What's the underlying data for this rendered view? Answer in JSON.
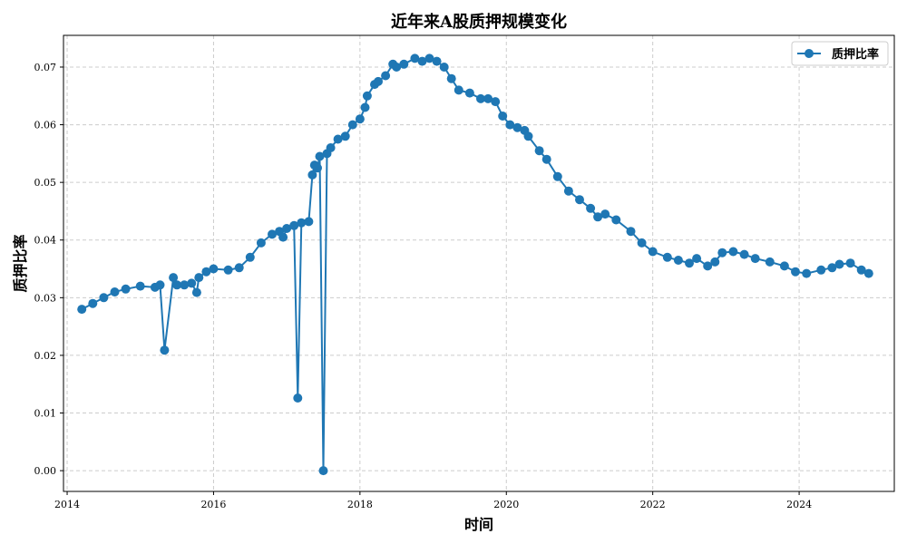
{
  "chart_data": {
    "type": "line",
    "title": "近年来A股质押规模变化",
    "xlabel": "时间",
    "ylabel": "质押比率",
    "xlim": [
      2013.95,
      2025.3
    ],
    "ylim": [
      -0.0036,
      0.0755
    ],
    "x_ticks": [
      2014,
      2016,
      2018,
      2020,
      2022,
      2024
    ],
    "x_tick_labels": [
      "2014",
      "2016",
      "2018",
      "2020",
      "2022",
      "2024"
    ],
    "y_ticks": [
      0.0,
      0.01,
      0.02,
      0.03,
      0.04,
      0.05,
      0.06,
      0.07
    ],
    "y_tick_labels": [
      "0.00",
      "0.01",
      "0.02",
      "0.03",
      "0.04",
      "0.05",
      "0.06",
      "0.07"
    ],
    "grid": true,
    "legend_position": "top-right",
    "colors": {
      "series": "#1f77b4",
      "grid": "#cccccc",
      "axis": "#000000"
    },
    "series": [
      {
        "name": "质押比率",
        "x": [
          2014.2,
          2014.35,
          2014.5,
          2014.65,
          2014.8,
          2015.0,
          2015.2,
          2015.27,
          2015.33,
          2015.45,
          2015.5,
          2015.6,
          2015.7,
          2015.77,
          2015.8,
          2015.9,
          2016.0,
          2016.2,
          2016.35,
          2016.5,
          2016.65,
          2016.8,
          2016.9,
          2016.95,
          2017.0,
          2017.1,
          2017.15,
          2017.2,
          2017.3,
          2017.35,
          2017.38,
          2017.42,
          2017.45,
          2017.5,
          2017.55,
          2017.6,
          2017.7,
          2017.8,
          2017.9,
          2018.0,
          2018.07,
          2018.1,
          2018.2,
          2018.25,
          2018.35,
          2018.45,
          2018.5,
          2018.6,
          2018.75,
          2018.85,
          2018.95,
          2019.05,
          2019.15,
          2019.25,
          2019.35,
          2019.5,
          2019.65,
          2019.75,
          2019.85,
          2019.95,
          2020.05,
          2020.15,
          2020.25,
          2020.3,
          2020.45,
          2020.55,
          2020.7,
          2020.85,
          2021.0,
          2021.15,
          2021.25,
          2021.35,
          2021.5,
          2021.7,
          2021.85,
          2022.0,
          2022.2,
          2022.35,
          2022.5,
          2022.6,
          2022.75,
          2022.85,
          2022.95,
          2023.1,
          2023.25,
          2023.4,
          2023.6,
          2023.8,
          2023.95,
          2024.1,
          2024.3,
          2024.45,
          2024.55,
          2024.7,
          2024.85,
          2024.95
        ],
        "values": [
          0.028,
          0.029,
          0.03,
          0.031,
          0.0315,
          0.032,
          0.0318,
          0.0322,
          0.0209,
          0.0335,
          0.0322,
          0.0322,
          0.0325,
          0.0309,
          0.0335,
          0.0345,
          0.035,
          0.0348,
          0.0352,
          0.037,
          0.0395,
          0.041,
          0.0415,
          0.0405,
          0.042,
          0.0425,
          0.0126,
          0.043,
          0.0432,
          0.0513,
          0.053,
          0.0525,
          0.0545,
          0.0,
          0.055,
          0.056,
          0.0575,
          0.058,
          0.06,
          0.061,
          0.063,
          0.065,
          0.067,
          0.0675,
          0.0685,
          0.0705,
          0.07,
          0.0705,
          0.0715,
          0.071,
          0.0715,
          0.071,
          0.07,
          0.068,
          0.066,
          0.0655,
          0.0645,
          0.0645,
          0.064,
          0.0615,
          0.06,
          0.0595,
          0.059,
          0.058,
          0.0555,
          0.054,
          0.051,
          0.0485,
          0.047,
          0.0455,
          0.044,
          0.0445,
          0.0435,
          0.0415,
          0.0395,
          0.038,
          0.037,
          0.0365,
          0.036,
          0.0368,
          0.0355,
          0.0362,
          0.0378,
          0.038,
          0.0375,
          0.0368,
          0.0362,
          0.0355,
          0.0345,
          0.0342,
          0.0348,
          0.0352,
          0.0358,
          0.036,
          0.0348,
          0.0342
        ]
      }
    ]
  }
}
